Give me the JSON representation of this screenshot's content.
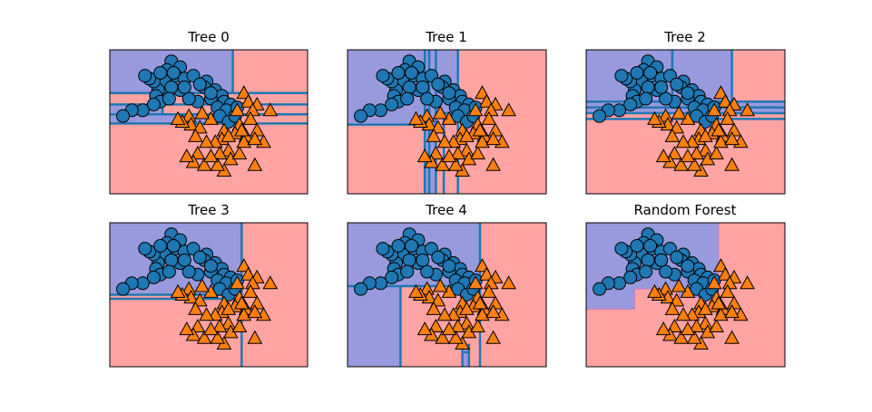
{
  "figure": {
    "background": "#ffffff"
  },
  "colors": {
    "class0_region": "#9999dd",
    "class1_region": "#ffa3a3",
    "boundary": "#1f77b4",
    "forest_edge": "#cc66cc",
    "class0_marker": "#1f77b4",
    "class1_marker": "#ff7f0e",
    "marker_edge": "#000000"
  },
  "chart_data": [
    {
      "type": "scatter",
      "title": "Tree 0",
      "xlim": [
        -2.0,
        2.5
      ],
      "ylim": [
        -1.0,
        1.5
      ],
      "ticks": "none",
      "regions": [
        {
          "x": [
            -2.0,
            0.8
          ],
          "y": [
            0.75,
            1.5
          ],
          "cls": 0
        },
        {
          "x": [
            0.8,
            2.5
          ],
          "y": [
            0.75,
            1.5
          ],
          "cls": 1
        },
        {
          "x": [
            -2.0,
            2.5
          ],
          "y": [
            0.55,
            0.75
          ],
          "cls": 1
        },
        {
          "x": [
            -2.0,
            -0.8
          ],
          "y": [
            0.38,
            0.55
          ],
          "cls": 0
        },
        {
          "x": [
            -0.8,
            2.5
          ],
          "y": [
            0.38,
            0.55
          ],
          "cls": 1
        },
        {
          "x": [
            -2.0,
            0.5
          ],
          "y": [
            0.22,
            0.38
          ],
          "cls": 0
        },
        {
          "x": [
            0.5,
            2.5
          ],
          "y": [
            0.22,
            0.38
          ],
          "cls": 1
        },
        {
          "x": [
            -2.0,
            2.5
          ],
          "y": [
            -1.0,
            0.22
          ],
          "cls": 1
        }
      ],
      "boundaries": [
        {
          "x": [
            0.8,
            0.8
          ],
          "y": [
            0.75,
            1.5
          ]
        },
        {
          "x": [
            -2.0,
            2.5
          ],
          "y": [
            0.75,
            0.75
          ]
        },
        {
          "x": [
            -2.0,
            2.5
          ],
          "y": [
            0.55,
            0.55
          ]
        },
        {
          "x": [
            -2.0,
            2.5
          ],
          "y": [
            0.38,
            0.38
          ]
        },
        {
          "x": [
            -2.0,
            2.5
          ],
          "y": [
            0.22,
            0.22
          ]
        },
        {
          "x": [
            -0.8,
            -0.8
          ],
          "y": [
            0.38,
            0.55
          ]
        },
        {
          "x": [
            0.5,
            0.5
          ],
          "y": [
            0.22,
            0.38
          ]
        }
      ]
    },
    {
      "type": "scatter",
      "title": "Tree 1",
      "xlim": [
        -2.0,
        2.5
      ],
      "ylim": [
        -1.0,
        1.5
      ],
      "ticks": "none",
      "regions": [
        {
          "x": [
            -2.0,
            0.5
          ],
          "y": [
            -1.0,
            1.5
          ],
          "cls": 0
        },
        {
          "x": [
            0.5,
            2.5
          ],
          "y": [
            -1.0,
            1.5
          ],
          "cls": 1
        },
        {
          "x": [
            -2.0,
            -0.25
          ],
          "y": [
            -1.0,
            0.2
          ],
          "cls": 1
        },
        {
          "x": [
            0.0,
            0.5
          ],
          "y": [
            -1.0,
            0.4
          ],
          "cls": 1
        }
      ],
      "boundaries": [
        {
          "x": [
            -0.25,
            -0.25
          ],
          "y": [
            -1.0,
            1.5
          ]
        },
        {
          "x": [
            0.0,
            0.0
          ],
          "y": [
            -1.0,
            1.5
          ]
        },
        {
          "x": [
            0.5,
            0.5
          ],
          "y": [
            -1.0,
            1.5
          ]
        },
        {
          "x": [
            -2.0,
            -0.25
          ],
          "y": [
            0.2,
            0.2
          ]
        },
        {
          "x": [
            0.0,
            0.5
          ],
          "y": [
            0.4,
            0.4
          ]
        },
        {
          "x": [
            0.18,
            0.18
          ],
          "y": [
            -1.0,
            0.4
          ]
        },
        {
          "x": [
            -0.15,
            -0.15
          ],
          "y": [
            -1.0,
            1.5
          ]
        }
      ]
    },
    {
      "type": "scatter",
      "title": "Tree 2",
      "xlim": [
        -2.0,
        2.5
      ],
      "ylim": [
        -1.0,
        1.5
      ],
      "ticks": "none",
      "regions": [
        {
          "x": [
            -2.0,
            1.3
          ],
          "y": [
            0.6,
            1.5
          ],
          "cls": 0
        },
        {
          "x": [
            1.3,
            2.5
          ],
          "y": [
            0.6,
            1.5
          ],
          "cls": 1
        },
        {
          "x": [
            -2.0,
            2.5
          ],
          "y": [
            0.4,
            0.6
          ],
          "cls": 0
        },
        {
          "x": [
            -2.0,
            2.5
          ],
          "y": [
            -1.0,
            0.4
          ],
          "cls": 1
        }
      ],
      "boundaries": [
        {
          "x": [
            1.3,
            1.3
          ],
          "y": [
            0.6,
            1.5
          ]
        },
        {
          "x": [
            -2.0,
            2.5
          ],
          "y": [
            0.6,
            0.6
          ]
        },
        {
          "x": [
            -2.0,
            2.5
          ],
          "y": [
            0.5,
            0.5
          ]
        },
        {
          "x": [
            -2.0,
            2.5
          ],
          "y": [
            0.4,
            0.4
          ]
        },
        {
          "x": [
            -2.0,
            2.5
          ],
          "y": [
            0.3,
            0.3
          ]
        },
        {
          "x": [
            -0.05,
            -0.05
          ],
          "y": [
            0.6,
            1.5
          ]
        }
      ]
    },
    {
      "type": "scatter",
      "title": "Tree 3",
      "xlim": [
        -2.0,
        2.5
      ],
      "ylim": [
        -1.0,
        1.5
      ],
      "ticks": "none",
      "regions": [
        {
          "x": [
            -2.0,
            1.0
          ],
          "y": [
            0.25,
            1.5
          ],
          "cls": 0
        },
        {
          "x": [
            1.0,
            2.5
          ],
          "y": [
            -1.0,
            1.5
          ],
          "cls": 1
        },
        {
          "x": [
            -2.0,
            1.0
          ],
          "y": [
            -1.0,
            0.25
          ],
          "cls": 1
        }
      ],
      "boundaries": [
        {
          "x": [
            1.0,
            1.0
          ],
          "y": [
            -1.0,
            1.5
          ]
        },
        {
          "x": [
            -2.0,
            1.0
          ],
          "y": [
            0.25,
            0.25
          ]
        },
        {
          "x": [
            -2.0,
            1.0
          ],
          "y": [
            0.18,
            0.18
          ]
        }
      ]
    },
    {
      "type": "scatter",
      "title": "Tree 4",
      "xlim": [
        -2.0,
        2.5
      ],
      "ylim": [
        -1.0,
        1.5
      ],
      "ticks": "none",
      "regions": [
        {
          "x": [
            -2.0,
            1.0
          ],
          "y": [
            0.4,
            1.5
          ],
          "cls": 0
        },
        {
          "x": [
            1.0,
            2.5
          ],
          "y": [
            -1.0,
            1.5
          ],
          "cls": 1
        },
        {
          "x": [
            -2.0,
            -0.8
          ],
          "y": [
            -1.0,
            0.4
          ],
          "cls": 0
        },
        {
          "x": [
            -0.8,
            1.0
          ],
          "y": [
            -1.0,
            0.4
          ],
          "cls": 1
        },
        {
          "x": [
            0.6,
            0.75
          ],
          "y": [
            -1.0,
            -0.6
          ],
          "cls": 0
        }
      ],
      "boundaries": [
        {
          "x": [
            1.0,
            1.0
          ],
          "y": [
            -1.0,
            1.5
          ]
        },
        {
          "x": [
            -2.0,
            1.0
          ],
          "y": [
            0.4,
            0.4
          ]
        },
        {
          "x": [
            -0.8,
            -0.8
          ],
          "y": [
            -1.0,
            0.4
          ]
        },
        {
          "x": [
            0.6,
            0.6
          ],
          "y": [
            -1.0,
            -0.6
          ]
        },
        {
          "x": [
            0.75,
            0.75
          ],
          "y": [
            -1.0,
            -0.6
          ]
        },
        {
          "x": [
            0.6,
            0.75
          ],
          "y": [
            -0.75,
            -0.75
          ]
        }
      ]
    },
    {
      "type": "scatter",
      "title": "Random Forest",
      "xlim": [
        -2.0,
        2.5
      ],
      "ylim": [
        -1.0,
        1.5
      ],
      "ticks": "none",
      "regions": [
        {
          "x": [
            -2.0,
            1.0
          ],
          "y": [
            0.6,
            1.5
          ],
          "cls": 0
        },
        {
          "x": [
            1.0,
            2.5
          ],
          "y": [
            -1.0,
            1.5
          ],
          "cls": 1
        },
        {
          "x": [
            -2.0,
            -0.9
          ],
          "y": [
            0.0,
            0.6
          ],
          "cls": 0
        },
        {
          "x": [
            -0.9,
            0.1
          ],
          "y": [
            0.35,
            0.6
          ],
          "cls": 0
        },
        {
          "x": [
            0.1,
            1.0
          ],
          "y": [
            0.2,
            0.6
          ],
          "cls": 0
        },
        {
          "x": [
            -2.0,
            1.0
          ],
          "y": [
            -1.0,
            0.0
          ],
          "cls": 1
        },
        {
          "x": [
            -0.9,
            0.1
          ],
          "y": [
            0.0,
            0.35
          ],
          "cls": 1
        },
        {
          "x": [
            0.1,
            1.0
          ],
          "y": [
            0.0,
            0.2
          ],
          "cls": 1
        }
      ],
      "boundaries": [],
      "forest_edge": [
        [
          -2.0,
          0.0
        ],
        [
          -0.9,
          0.0
        ],
        [
          -0.9,
          0.35
        ],
        [
          0.1,
          0.35
        ],
        [
          0.1,
          0.2
        ],
        [
          1.0,
          0.2
        ],
        [
          1.0,
          1.5
        ]
      ]
    }
  ],
  "points": {
    "class0": [
      [
        -0.6,
        1.3
      ],
      [
        -0.4,
        1.2
      ],
      [
        -0.7,
        1.15
      ],
      [
        -0.5,
        1.05
      ],
      [
        -0.3,
        1.0
      ],
      [
        -0.1,
        1.05
      ],
      [
        0.2,
        0.95
      ],
      [
        0.15,
        0.85
      ],
      [
        0.4,
        0.8
      ],
      [
        0.55,
        0.7
      ],
      [
        0.6,
        0.6
      ],
      [
        0.75,
        0.55
      ],
      [
        0.3,
        0.65
      ],
      [
        0.0,
        0.6
      ],
      [
        -0.2,
        0.65
      ],
      [
        -0.4,
        0.8
      ],
      [
        -0.75,
        0.95
      ],
      [
        -0.6,
        0.85
      ],
      [
        -0.9,
        0.8
      ],
      [
        -1.0,
        0.95
      ],
      [
        -1.1,
        1.0
      ],
      [
        -1.2,
        1.05
      ],
      [
        -0.95,
        0.7
      ],
      [
        -0.85,
        0.6
      ],
      [
        -0.65,
        0.65
      ],
      [
        -1.0,
        0.55
      ],
      [
        -1.25,
        0.45
      ],
      [
        -1.5,
        0.45
      ],
      [
        -1.7,
        0.35
      ],
      [
        -0.55,
        1.1
      ],
      [
        0.05,
        0.9
      ],
      [
        0.3,
        0.75
      ],
      [
        0.45,
        0.5
      ],
      [
        0.65,
        0.45
      ],
      [
        0.5,
        0.35
      ],
      [
        0.7,
        0.25
      ],
      [
        0.85,
        0.35
      ],
      [
        0.9,
        0.5
      ],
      [
        -0.3,
        0.85
      ],
      [
        -0.85,
        1.1
      ]
    ],
    "class1": [
      [
        1.05,
        0.75
      ],
      [
        1.15,
        0.6
      ],
      [
        1.35,
        0.55
      ],
      [
        1.25,
        0.45
      ],
      [
        1.2,
        0.3
      ],
      [
        1.35,
        0.1
      ],
      [
        1.1,
        0.0
      ],
      [
        1.5,
        -0.1
      ],
      [
        1.65,
        0.45
      ],
      [
        0.95,
        0.2
      ],
      [
        0.85,
        0.05
      ],
      [
        0.6,
        0.1
      ],
      [
        0.55,
        -0.05
      ],
      [
        0.4,
        -0.1
      ],
      [
        0.7,
        -0.25
      ],
      [
        0.5,
        -0.3
      ],
      [
        0.75,
        -0.4
      ],
      [
        0.95,
        -0.3
      ],
      [
        1.05,
        -0.1
      ],
      [
        1.3,
        -0.05
      ],
      [
        0.3,
        0.3
      ],
      [
        0.1,
        0.4
      ],
      [
        -0.2,
        0.35
      ],
      [
        -0.15,
        0.2
      ],
      [
        0.05,
        0.15
      ],
      [
        -0.35,
        0.25
      ],
      [
        0.2,
        -0.1
      ],
      [
        0.0,
        -0.3
      ],
      [
        -0.1,
        -0.45
      ],
      [
        0.15,
        -0.5
      ],
      [
        -0.25,
        -0.35
      ],
      [
        0.6,
        -0.6
      ],
      [
        0.45,
        -0.5
      ],
      [
        1.3,
        -0.5
      ],
      [
        -0.45,
        0.3
      ],
      [
        0.9,
        0.45
      ],
      [
        1.0,
        0.1
      ],
      [
        0.7,
        0.0
      ],
      [
        -0.05,
        0.0
      ],
      [
        0.3,
        -0.35
      ]
    ]
  }
}
